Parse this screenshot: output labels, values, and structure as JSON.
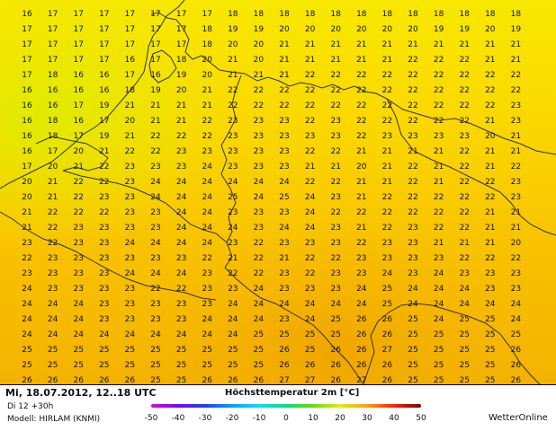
{
  "map": {
    "type": "temperature_grid",
    "variable": "Höchsttemperatur 2m [°C]",
    "columns": 20,
    "rows": 25,
    "values": [
      [
        16,
        17,
        17,
        17,
        17,
        17,
        17,
        17,
        18,
        18,
        18,
        18,
        18,
        18,
        18,
        18,
        18,
        18,
        18,
        18
      ],
      [
        17,
        17,
        17,
        17,
        17,
        17,
        17,
        18,
        19,
        19,
        20,
        20,
        20,
        20,
        20,
        20,
        19,
        19,
        20,
        19
      ],
      [
        17,
        17,
        17,
        17,
        17,
        17,
        17,
        18,
        20,
        20,
        21,
        21,
        21,
        21,
        21,
        21,
        21,
        21,
        21,
        21
      ],
      [
        17,
        17,
        17,
        17,
        16,
        17,
        18,
        20,
        21,
        20,
        21,
        21,
        21,
        21,
        21,
        22,
        22,
        22,
        21,
        21
      ],
      [
        17,
        18,
        16,
        16,
        17,
        16,
        19,
        20,
        21,
        21,
        21,
        22,
        22,
        22,
        22,
        22,
        22,
        22,
        22,
        22
      ],
      [
        16,
        16,
        16,
        16,
        18,
        19,
        20,
        21,
        22,
        22,
        22,
        22,
        22,
        22,
        22,
        22,
        22,
        22,
        22,
        22
      ],
      [
        16,
        16,
        17,
        19,
        21,
        21,
        21,
        21,
        22,
        22,
        22,
        22,
        22,
        22,
        22,
        22,
        22,
        22,
        22,
        23
      ],
      [
        16,
        18,
        16,
        17,
        20,
        21,
        21,
        22,
        23,
        23,
        23,
        22,
        23,
        22,
        22,
        22,
        22,
        22,
        21,
        23
      ],
      [
        16,
        18,
        17,
        19,
        21,
        22,
        22,
        22,
        23,
        23,
        23,
        23,
        23,
        22,
        23,
        23,
        23,
        23,
        20,
        21
      ],
      [
        16,
        17,
        20,
        21,
        22,
        22,
        23,
        23,
        23,
        23,
        23,
        22,
        22,
        21,
        21,
        21,
        21,
        22,
        21,
        21
      ],
      [
        17,
        20,
        21,
        22,
        23,
        23,
        23,
        24,
        23,
        23,
        23,
        21,
        21,
        20,
        21,
        22,
        21,
        22,
        21,
        22
      ],
      [
        20,
        21,
        22,
        22,
        23,
        24,
        24,
        24,
        24,
        24,
        24,
        22,
        22,
        21,
        21,
        22,
        21,
        22,
        22,
        23
      ],
      [
        20,
        21,
        22,
        23,
        23,
        24,
        24,
        24,
        25,
        24,
        25,
        24,
        23,
        21,
        22,
        22,
        22,
        22,
        22,
        23
      ],
      [
        21,
        22,
        22,
        22,
        23,
        23,
        24,
        24,
        23,
        23,
        23,
        24,
        22,
        22,
        22,
        22,
        22,
        22,
        21,
        21
      ],
      [
        21,
        22,
        23,
        23,
        23,
        23,
        24,
        24,
        24,
        23,
        24,
        24,
        23,
        21,
        22,
        23,
        22,
        22,
        21,
        21
      ],
      [
        23,
        22,
        23,
        23,
        24,
        24,
        24,
        24,
        23,
        22,
        23,
        23,
        23,
        22,
        23,
        23,
        21,
        21,
        21,
        20
      ],
      [
        22,
        23,
        23,
        23,
        23,
        23,
        23,
        22,
        21,
        22,
        21,
        22,
        22,
        23,
        23,
        23,
        23,
        22,
        22,
        22
      ],
      [
        23,
        23,
        23,
        23,
        24,
        24,
        24,
        23,
        22,
        22,
        23,
        22,
        23,
        23,
        24,
        23,
        24,
        23,
        23,
        23
      ],
      [
        24,
        23,
        23,
        23,
        23,
        22,
        22,
        23,
        23,
        24,
        23,
        23,
        23,
        24,
        25,
        24,
        24,
        24,
        23,
        23
      ],
      [
        24,
        24,
        24,
        23,
        23,
        23,
        23,
        23,
        24,
        24,
        24,
        24,
        24,
        24,
        25,
        24,
        24,
        24,
        24,
        24
      ],
      [
        24,
        24,
        24,
        23,
        23,
        23,
        23,
        24,
        24,
        24,
        23,
        24,
        25,
        26,
        26,
        25,
        24,
        25,
        25,
        24
      ],
      [
        24,
        24,
        24,
        24,
        24,
        24,
        24,
        24,
        24,
        25,
        25,
        25,
        25,
        26,
        26,
        25,
        25,
        25,
        25,
        25
      ],
      [
        25,
        25,
        25,
        25,
        25,
        25,
        25,
        25,
        25,
        25,
        26,
        25,
        26,
        26,
        27,
        25,
        25,
        25,
        25,
        26
      ],
      [
        25,
        25,
        25,
        25,
        25,
        25,
        25,
        25,
        25,
        25,
        26,
        26,
        26,
        26,
        26,
        25,
        25,
        25,
        25,
        26
      ],
      [
        26,
        26,
        26,
        26,
        26,
        25,
        25,
        26,
        26,
        26,
        27,
        27,
        26,
        27,
        26,
        25,
        25,
        25,
        25,
        26
      ]
    ]
  },
  "footer": {
    "date_line": "Mi, 18.07.2012, 12..18 UTC",
    "step_line": "Di 12 +30h",
    "model_line": "Modell: HIRLAM (KNMI)",
    "title": "Höchsttemperatur 2m [°C]",
    "brand": "WetterOnline"
  },
  "scale": {
    "ticks": [
      "-50",
      "-40",
      "-30",
      "-20",
      "-10",
      "0",
      "10",
      "20",
      "30",
      "40",
      "50"
    ],
    "colors": [
      "#e000e0",
      "#8000ff",
      "#2040ff",
      "#00a0ff",
      "#00e0ff",
      "#00e080",
      "#60e000",
      "#e0f000",
      "#ffa000",
      "#ff2000",
      "#800000"
    ]
  }
}
